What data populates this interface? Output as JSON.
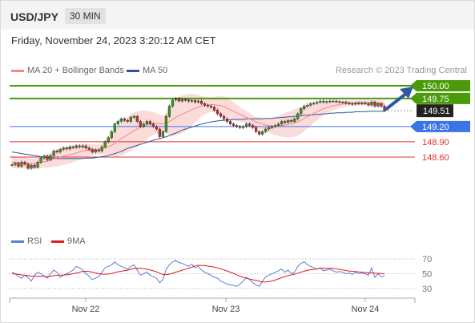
{
  "header": {
    "symbol": "USD/JPY",
    "timeframe": "30 MIN"
  },
  "datetime": "Friday, November 24, 2023 3:20:12 AM CET",
  "legend": {
    "ma20": {
      "label": "MA 20 + Bollinger Bands",
      "color": "#f08a8a"
    },
    "ma50": {
      "label": "MA 50",
      "color": "#2f5597"
    }
  },
  "credit": "Research © 2023 Trading Central",
  "rsi_legend": {
    "rsi": {
      "label": "RSI",
      "color": "#5b7fd6"
    },
    "ma9": {
      "label": "9MA",
      "color": "#e11c1c"
    }
  },
  "chart_data": [
    {
      "type": "candlestick",
      "title": "",
      "x_ticks": [
        "Nov 22",
        "Nov 23",
        "Nov 24"
      ],
      "ylim": [
        148.3,
        150.1
      ],
      "current_price": 149.51,
      "levels": [
        {
          "label": "150.00",
          "value": 150.0,
          "color": "#4a9a0a",
          "style": "resistance"
        },
        {
          "label": "149.75",
          "value": 149.75,
          "color": "#4a9a0a",
          "style": "resistance"
        },
        {
          "label": "149.51",
          "value": 149.51,
          "color": "#222222",
          "style": "last"
        },
        {
          "label": "149.20",
          "value": 149.2,
          "color": "#3b74e6",
          "style": "pivot"
        },
        {
          "label": "148.90",
          "value": 148.9,
          "color": "#e03030",
          "style": "support"
        },
        {
          "label": "148.60",
          "value": 148.6,
          "color": "#e03030",
          "style": "support"
        }
      ],
      "close": [
        148.45,
        148.48,
        148.42,
        148.5,
        148.46,
        148.38,
        148.44,
        148.4,
        148.5,
        148.58,
        148.62,
        148.55,
        148.63,
        148.72,
        148.7,
        148.75,
        148.78,
        148.76,
        148.8,
        148.79,
        148.82,
        148.8,
        148.82,
        148.78,
        148.75,
        148.7,
        148.74,
        148.72,
        148.8,
        148.9,
        148.98,
        149.1,
        149.25,
        149.3,
        149.35,
        149.32,
        149.3,
        149.38,
        149.4,
        149.3,
        149.2,
        149.25,
        149.3,
        149.25,
        149.2,
        149.15,
        149.0,
        149.1,
        149.4,
        149.6,
        149.72,
        149.75,
        149.7,
        149.73,
        149.72,
        149.7,
        149.71,
        149.68,
        149.7,
        149.65,
        149.62,
        149.6,
        149.58,
        149.52,
        149.45,
        149.4,
        149.35,
        149.3,
        149.25,
        149.22,
        149.2,
        149.18,
        149.2,
        149.25,
        149.22,
        149.18,
        149.1,
        149.05,
        149.1,
        149.15,
        149.18,
        149.2,
        149.22,
        149.25,
        149.3,
        149.28,
        149.32,
        149.3,
        149.35,
        149.45,
        149.55,
        149.6,
        149.62,
        149.65,
        149.66,
        149.68,
        149.7,
        149.68,
        149.69,
        149.7,
        149.7,
        149.69,
        149.68,
        149.68,
        149.66,
        149.65,
        149.64,
        149.66,
        149.65,
        149.66,
        149.65,
        149.62,
        149.68,
        149.6,
        149.65,
        149.6,
        149.51
      ],
      "ma20": [
        148.5,
        148.5,
        148.49,
        148.49,
        148.48,
        148.48,
        148.47,
        148.47,
        148.48,
        148.49,
        148.51,
        148.52,
        148.54,
        148.56,
        148.58,
        148.6,
        148.62,
        148.63,
        148.65,
        148.66,
        148.68,
        148.7,
        148.72,
        148.73,
        148.74,
        148.74,
        148.75,
        148.75,
        148.76,
        148.78,
        148.8,
        148.83,
        148.87,
        148.91,
        148.96,
        149.0,
        149.04,
        149.08,
        149.12,
        149.15,
        149.18,
        149.21,
        149.23,
        149.25,
        149.26,
        149.26,
        149.25,
        149.25,
        149.27,
        149.3,
        149.34,
        149.38,
        149.41,
        149.44,
        149.47,
        149.5,
        149.53,
        149.56,
        149.58,
        149.6,
        149.61,
        149.62,
        149.63,
        149.63,
        149.62,
        149.61,
        149.59,
        149.56,
        149.53,
        149.5,
        149.47,
        149.44,
        149.41,
        149.38,
        149.35,
        149.32,
        149.29,
        149.27,
        149.25,
        149.23,
        149.22,
        149.21,
        149.21,
        149.21,
        149.22,
        149.23,
        149.24,
        149.25,
        149.27,
        149.29,
        149.32,
        149.36,
        149.39,
        149.42,
        149.46,
        149.49,
        149.52,
        149.55,
        149.57,
        149.59,
        149.61,
        149.62,
        149.63,
        149.64,
        149.65,
        149.66,
        149.66,
        149.66,
        149.67,
        149.67,
        149.67,
        149.67,
        149.67,
        149.66,
        149.66,
        149.65,
        149.64
      ],
      "bb_width": [
        0.12,
        0.12,
        0.11,
        0.11,
        0.11,
        0.11,
        0.1,
        0.1,
        0.1,
        0.11,
        0.12,
        0.13,
        0.14,
        0.15,
        0.16,
        0.17,
        0.17,
        0.17,
        0.17,
        0.16,
        0.16,
        0.15,
        0.14,
        0.13,
        0.12,
        0.11,
        0.1,
        0.1,
        0.11,
        0.13,
        0.16,
        0.2,
        0.26,
        0.3,
        0.33,
        0.34,
        0.35,
        0.36,
        0.36,
        0.35,
        0.33,
        0.31,
        0.28,
        0.25,
        0.22,
        0.2,
        0.18,
        0.16,
        0.2,
        0.27,
        0.33,
        0.36,
        0.37,
        0.37,
        0.36,
        0.34,
        0.31,
        0.28,
        0.24,
        0.2,
        0.17,
        0.15,
        0.14,
        0.15,
        0.17,
        0.19,
        0.2,
        0.2,
        0.19,
        0.18,
        0.16,
        0.14,
        0.13,
        0.12,
        0.11,
        0.1,
        0.1,
        0.11,
        0.12,
        0.13,
        0.14,
        0.16,
        0.18,
        0.2,
        0.22,
        0.24,
        0.25,
        0.26,
        0.27,
        0.27,
        0.26,
        0.25,
        0.23,
        0.21,
        0.19,
        0.17,
        0.15,
        0.13,
        0.11,
        0.1,
        0.09,
        0.08,
        0.07,
        0.06,
        0.06,
        0.05,
        0.05,
        0.05,
        0.05,
        0.05,
        0.05,
        0.05,
        0.05,
        0.05,
        0.06,
        0.06,
        0.07
      ],
      "ma50": [
        148.7,
        148.69,
        148.68,
        148.67,
        148.66,
        148.65,
        148.64,
        148.63,
        148.62,
        148.61,
        148.6,
        148.59,
        148.58,
        148.58,
        148.57,
        148.57,
        148.57,
        148.57,
        148.57,
        148.57,
        148.57,
        148.57,
        148.57,
        148.58,
        148.58,
        148.58,
        148.59,
        148.6,
        148.61,
        148.62,
        148.63,
        148.65,
        148.67,
        148.69,
        148.71,
        148.74,
        148.77,
        148.79,
        148.81,
        148.83,
        148.85,
        148.87,
        148.89,
        148.91,
        148.93,
        148.95,
        148.96,
        148.98,
        149.0,
        149.02,
        149.05,
        149.07,
        149.1,
        149.13,
        149.15,
        149.17,
        149.19,
        149.21,
        149.23,
        149.25,
        149.26,
        149.28,
        149.29,
        149.3,
        149.31,
        149.32,
        149.32,
        149.33,
        149.33,
        149.34,
        149.34,
        149.34,
        149.34,
        149.35,
        149.35,
        149.35,
        149.35,
        149.35,
        149.35,
        149.36,
        149.36,
        149.36,
        149.37,
        149.37,
        149.38,
        149.38,
        149.39,
        149.39,
        149.4,
        149.4,
        149.41,
        149.42,
        149.42,
        149.43,
        149.43,
        149.44,
        149.44,
        149.45,
        149.45,
        149.46,
        149.46,
        149.47,
        149.47,
        149.47,
        149.48,
        149.48,
        149.48,
        149.49,
        149.49,
        149.49,
        149.49,
        149.5,
        149.5,
        149.5,
        149.5,
        149.5,
        149.5
      ],
      "forecast_arrow": {
        "direction": "up",
        "target": 150.0
      }
    },
    {
      "type": "line",
      "title": "RSI",
      "ylim": [
        20,
        80
      ],
      "y_ticks": [
        70,
        50,
        30
      ],
      "series": [
        {
          "name": "RSI",
          "values": [
            52,
            50,
            46,
            44,
            48,
            45,
            40,
            48,
            52,
            50,
            47,
            44,
            50,
            55,
            52,
            45,
            48,
            50,
            52,
            55,
            60,
            58,
            55,
            50,
            47,
            42,
            44,
            46,
            52,
            58,
            60,
            62,
            66,
            62,
            60,
            58,
            56,
            60,
            62,
            55,
            48,
            50,
            52,
            48,
            46,
            44,
            38,
            42,
            56,
            62,
            66,
            68,
            65,
            64,
            62,
            60,
            63,
            58,
            60,
            55,
            52,
            50,
            48,
            45,
            44,
            40,
            38,
            36,
            35,
            34,
            33,
            36,
            40,
            45,
            42,
            38,
            35,
            33,
            40,
            46,
            48,
            50,
            52,
            54,
            56,
            52,
            55,
            50,
            52,
            60,
            64,
            66,
            62,
            60,
            58,
            56,
            58,
            54,
            55,
            56,
            54,
            52,
            53,
            52,
            50,
            51,
            49,
            52,
            50,
            51,
            50,
            48,
            58,
            45,
            50,
            46,
            47
          ]
        },
        {
          "name": "9MA",
          "values": [
            50,
            49.6,
            49,
            48.4,
            48,
            47.5,
            46.8,
            46.6,
            46.7,
            46.6,
            46.6,
            46.1,
            46.4,
            47.4,
            48,
            48.1,
            48.2,
            48.5,
            49.1,
            49.9,
            51,
            52.1,
            53.1,
            53.3,
            53,
            52.1,
            51.1,
            50.1,
            49.5,
            49.4,
            49.6,
            50.3,
            51.5,
            52.6,
            53.3,
            54,
            54.8,
            55.9,
            57,
            57.5,
            57.3,
            56.8,
            56.2,
            55.1,
            53.9,
            52.5,
            50.6,
            48.9,
            48.6,
            49.4,
            50.6,
            52,
            53.4,
            54.8,
            56.2,
            57.5,
            58.8,
            60.5,
            61.4,
            61.2,
            60.9,
            60.3,
            59.6,
            58.9,
            57.8,
            56.5,
            55.1,
            53.7,
            52.1,
            50.4,
            48.5,
            46.7,
            45.1,
            43.9,
            42.9,
            41.9,
            40.9,
            39.8,
            38.8,
            38.8,
            39.4,
            40.2,
            41.5,
            43.1,
            44.7,
            46.1,
            47.5,
            48.4,
            49.5,
            50.8,
            52.2,
            53.4,
            54.5,
            55.3,
            55.9,
            56.6,
            57.3,
            57.4,
            57.4,
            57.5,
            57.1,
            56.5,
            55.8,
            55.2,
            54.4,
            53.6,
            53.2,
            52.9,
            52.4,
            52,
            51.6,
            51.1,
            51.5,
            50.6,
            50.5,
            50.1,
            49.6
          ]
        }
      ]
    }
  ]
}
